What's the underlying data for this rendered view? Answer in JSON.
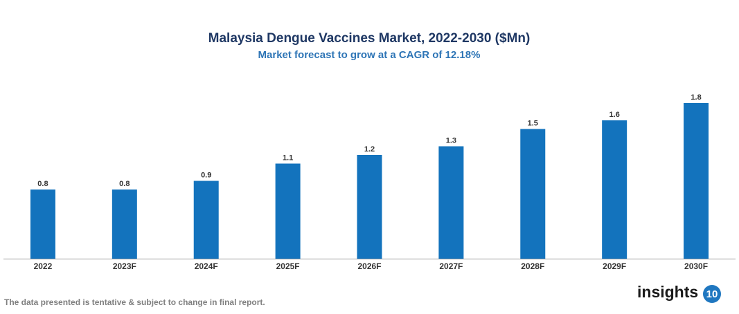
{
  "chart_data": {
    "type": "bar",
    "title": "Malaysia Dengue Vaccines Market, 2022-2030 ($Mn)",
    "subtitle": "Market forecast to grow at a CAGR of 12.18%",
    "categories": [
      "2022",
      "2023F",
      "2024F",
      "2025F",
      "2026F",
      "2027F",
      "2028F",
      "2029F",
      "2030F"
    ],
    "values": [
      0.8,
      0.8,
      0.9,
      1.1,
      1.2,
      1.3,
      1.5,
      1.6,
      1.8
    ],
    "color": "#1373bd",
    "footnote": "The data presented is tentative & subject to change in final report.",
    "logo": {
      "text": "insights",
      "badge": "10"
    }
  }
}
